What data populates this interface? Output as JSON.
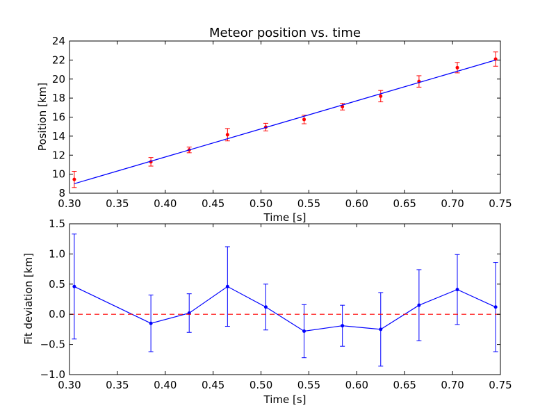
{
  "chart_data": [
    {
      "type": "scatter",
      "title": "Meteor position vs. time",
      "xlabel": "Time [s]",
      "ylabel": "Position [km]",
      "xlim": [
        0.3,
        0.75
      ],
      "ylim": [
        8,
        24
      ],
      "xticks": [
        "0.30",
        "0.35",
        "0.40",
        "0.45",
        "0.50",
        "0.55",
        "0.60",
        "0.65",
        "0.70",
        "0.75"
      ],
      "yticks": [
        "8",
        "10",
        "12",
        "14",
        "16",
        "18",
        "20",
        "22",
        "24"
      ],
      "series": [
        {
          "kind": "errorbar",
          "color": "#ff0000",
          "x": [
            0.305,
            0.385,
            0.425,
            0.465,
            0.505,
            0.545,
            0.585,
            0.625,
            0.665,
            0.705,
            0.745
          ],
          "y": [
            9.45,
            11.3,
            12.55,
            14.15,
            14.95,
            15.75,
            17.1,
            18.2,
            19.75,
            21.2,
            22.1
          ],
          "yerr": [
            0.85,
            0.45,
            0.3,
            0.65,
            0.4,
            0.45,
            0.35,
            0.6,
            0.6,
            0.55,
            0.75
          ]
        },
        {
          "kind": "fit-line",
          "color": "#0000ff",
          "x": [
            0.305,
            0.745
          ],
          "y": [
            9.0,
            22.0
          ]
        }
      ]
    },
    {
      "type": "line",
      "title": "",
      "xlabel": "Time [s]",
      "ylabel": "Fit deviation [km]",
      "xlim": [
        0.3,
        0.75
      ],
      "ylim": [
        -1.0,
        1.5
      ],
      "xticks": [
        "0.30",
        "0.35",
        "0.40",
        "0.45",
        "0.50",
        "0.55",
        "0.60",
        "0.65",
        "0.70",
        "0.75"
      ],
      "yticks": [
        "−1.0",
        "−0.5",
        "0.0",
        "0.5",
        "1.0",
        "1.5"
      ],
      "ytick_values": [
        -1.0,
        -0.5,
        0.0,
        0.5,
        1.0,
        1.5
      ],
      "series": [
        {
          "kind": "errorbar-line",
          "color": "#0000ff",
          "x": [
            0.305,
            0.385,
            0.425,
            0.465,
            0.505,
            0.545,
            0.585,
            0.625,
            0.665,
            0.705,
            0.745
          ],
          "y": [
            0.46,
            -0.15,
            0.02,
            0.46,
            0.12,
            -0.28,
            -0.19,
            -0.25,
            0.15,
            0.41,
            0.12
          ],
          "yerr": [
            0.87,
            0.47,
            0.32,
            0.66,
            0.38,
            0.44,
            0.34,
            0.61,
            0.59,
            0.58,
            0.74
          ]
        },
        {
          "kind": "reference-line",
          "color": "#ff0000",
          "style": "dashed",
          "y": 0.0
        }
      ]
    }
  ]
}
